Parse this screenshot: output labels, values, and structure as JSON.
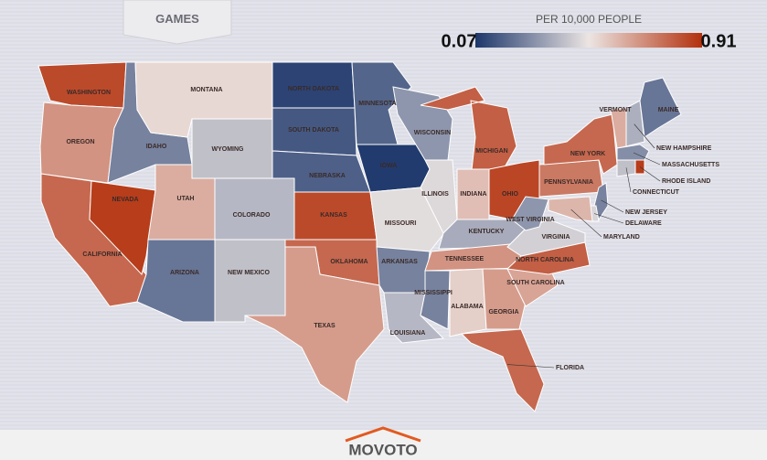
{
  "header": {
    "title": "GAMES"
  },
  "legend": {
    "label": "PER 10,000 PEOPLE",
    "min": 0.07,
    "max": 0.91,
    "min_label": "0.07",
    "max_label": "0.91",
    "colors": [
      "#1d376b",
      "#ece5e3",
      "#b3300c"
    ]
  },
  "states": [
    {
      "name": "WASHINGTON",
      "value": 0.85
    },
    {
      "name": "OREGON",
      "value": 0.68
    },
    {
      "name": "CALIFORNIA",
      "value": 0.78
    },
    {
      "name": "NEVADA",
      "value": 0.88
    },
    {
      "name": "IDAHO",
      "value": 0.25
    },
    {
      "name": "MONTANA",
      "value": 0.52
    },
    {
      "name": "WYOMING",
      "value": 0.4
    },
    {
      "name": "UTAH",
      "value": 0.62
    },
    {
      "name": "COLORADO",
      "value": 0.38
    },
    {
      "name": "ARIZONA",
      "value": 0.22
    },
    {
      "name": "NEW MEXICO",
      "value": 0.4
    },
    {
      "name": "NORTH DAKOTA",
      "value": 0.1
    },
    {
      "name": "SOUTH DAKOTA",
      "value": 0.15
    },
    {
      "name": "NEBRASKA",
      "value": 0.17
    },
    {
      "name": "KANSAS",
      "value": 0.85
    },
    {
      "name": "OKLAHOMA",
      "value": 0.78
    },
    {
      "name": "TEXAS",
      "value": 0.66
    },
    {
      "name": "MINNESOTA",
      "value": 0.18
    },
    {
      "name": "IOWA",
      "value": 0.08
    },
    {
      "name": "MISSOURI",
      "value": 0.47
    },
    {
      "name": "ARKANSAS",
      "value": 0.25
    },
    {
      "name": "LOUISIANA",
      "value": 0.38
    },
    {
      "name": "WISCONSIN",
      "value": 0.3
    },
    {
      "name": "ILLINOIS",
      "value": 0.46
    },
    {
      "name": "MICHIGAN",
      "value": 0.8
    },
    {
      "name": "INDIANA",
      "value": 0.58
    },
    {
      "name": "OHIO",
      "value": 0.86
    },
    {
      "name": "KENTUCKY",
      "value": 0.35
    },
    {
      "name": "TENNESSEE",
      "value": 0.68
    },
    {
      "name": "MISSISSIPPI",
      "value": 0.25
    },
    {
      "name": "ALABAMA",
      "value": 0.54
    },
    {
      "name": "GEORGIA",
      "value": 0.66
    },
    {
      "name": "FLORIDA",
      "value": 0.78
    },
    {
      "name": "SOUTH CAROLINA",
      "value": 0.64
    },
    {
      "name": "NORTH CAROLINA",
      "value": 0.8
    },
    {
      "name": "VIRGINIA",
      "value": 0.44
    },
    {
      "name": "WEST VIRGINIA",
      "value": 0.3
    },
    {
      "name": "PENNSYLVANIA",
      "value": 0.74
    },
    {
      "name": "NEW YORK",
      "value": 0.78
    },
    {
      "name": "VERMONT",
      "value": 0.62
    },
    {
      "name": "NEW HAMPSHIRE",
      "value": 0.36
    },
    {
      "name": "MAINE",
      "value": 0.22
    },
    {
      "name": "MASSACHUSETTS",
      "value": 0.28
    },
    {
      "name": "CONNECTICUT",
      "value": 0.4
    },
    {
      "name": "RHODE ISLAND",
      "value": 0.88
    },
    {
      "name": "NEW JERSEY",
      "value": 0.25
    },
    {
      "name": "DELAWARE",
      "value": 0.45
    },
    {
      "name": "MARYLAND",
      "value": 0.6
    }
  ],
  "footer": {
    "brand": "MOVOTO"
  }
}
